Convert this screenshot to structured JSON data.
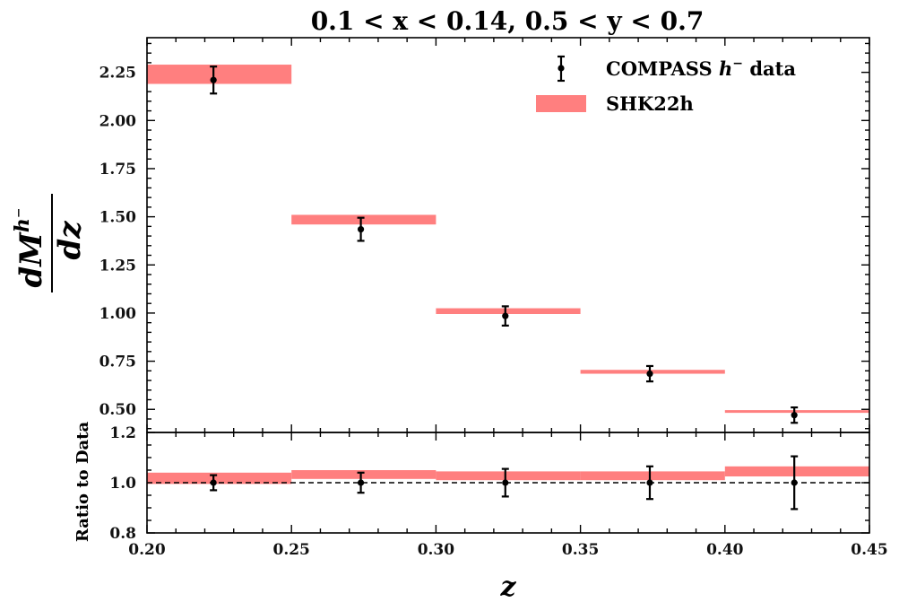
{
  "chart_data": {
    "type": "bar",
    "title": "0.1 < x < 0.14, 0.5 < y < 0.7",
    "xlabel": "z",
    "xlim": [
      0.2,
      0.45
    ],
    "x_ticks": [
      "0.20",
      "0.25",
      "0.30",
      "0.35",
      "0.40",
      "0.45"
    ],
    "main_panel": {
      "ylabel_numerator": "dM",
      "ylabel_superscript": "h⁻",
      "ylabel_denominator": "dz",
      "ylim": [
        0.38,
        2.43
      ],
      "y_ticks": [
        "0.50",
        "0.75",
        "1.00",
        "1.25",
        "1.50",
        "1.75",
        "2.00",
        "2.25"
      ],
      "series": [
        {
          "name": "SHK22h",
          "kind": "band",
          "color": "#ff7f7f",
          "bins": [
            {
              "x0": 0.2,
              "x1": 0.25,
              "lo": 2.19,
              "hi": 2.29
            },
            {
              "x0": 0.25,
              "x1": 0.3,
              "lo": 1.46,
              "hi": 1.51
            },
            {
              "x0": 0.3,
              "x1": 0.35,
              "lo": 0.995,
              "hi": 1.025
            },
            {
              "x0": 0.35,
              "x1": 0.4,
              "lo": 0.685,
              "hi": 0.705
            },
            {
              "x0": 0.4,
              "x1": 0.45,
              "lo": 0.482,
              "hi": 0.496
            }
          ]
        },
        {
          "name": "COMPASS h⁻ data",
          "kind": "errorbar",
          "color": "#000000",
          "points": [
            {
              "x": 0.223,
              "y": 2.21,
              "err": 0.07
            },
            {
              "x": 0.274,
              "y": 1.435,
              "err": 0.06
            },
            {
              "x": 0.324,
              "y": 0.985,
              "err": 0.05
            },
            {
              "x": 0.374,
              "y": 0.685,
              "err": 0.04
            },
            {
              "x": 0.424,
              "y": 0.47,
              "err": 0.04
            }
          ]
        }
      ]
    },
    "ratio_panel": {
      "ylabel": "Ratio to Data",
      "ylim": [
        0.8,
        1.2
      ],
      "y_ticks": [
        "0.8",
        "1.0",
        "1.2"
      ],
      "reference_line": 1.0,
      "bands": [
        {
          "x0": 0.2,
          "x1": 0.25,
          "lo": 0.995,
          "hi": 1.04
        },
        {
          "x0": 0.25,
          "x1": 0.3,
          "lo": 1.015,
          "hi": 1.05
        },
        {
          "x0": 0.3,
          "x1": 0.35,
          "lo": 1.01,
          "hi": 1.045
        },
        {
          "x0": 0.35,
          "x1": 0.4,
          "lo": 1.01,
          "hi": 1.045
        },
        {
          "x0": 0.4,
          "x1": 0.45,
          "lo": 1.025,
          "hi": 1.065
        }
      ],
      "points": [
        {
          "x": 0.223,
          "y": 1.0,
          "err": 0.03
        },
        {
          "x": 0.274,
          "y": 1.0,
          "err": 0.04
        },
        {
          "x": 0.324,
          "y": 1.0,
          "err": 0.055
        },
        {
          "x": 0.374,
          "y": 1.0,
          "err": 0.065
        },
        {
          "x": 0.424,
          "y": 1.0,
          "err": 0.105
        }
      ]
    },
    "legend": {
      "position": "top-right",
      "entries": [
        {
          "label_main": "COMPASS ",
          "label_math": "h",
          "label_sup": "−",
          "label_tail": " data"
        },
        {
          "label_main": "SHK22h"
        }
      ]
    }
  }
}
